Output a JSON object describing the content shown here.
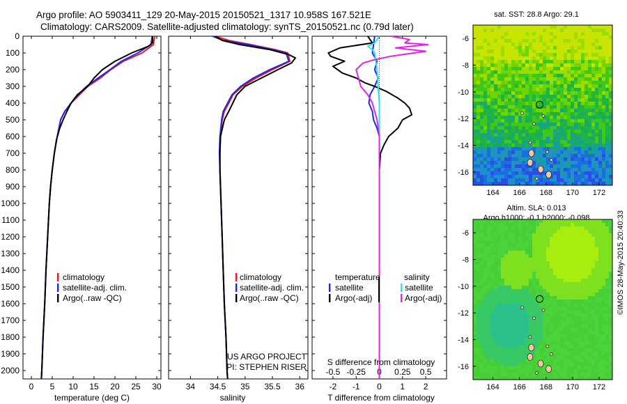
{
  "header": {
    "line1": "Argo profile: AO 5903411_129 20-May-2015 20150521_1317 10.958S 167.521E",
    "line2": "Climatology: CARS2009. Satellite-adjusted climatology: synTS_20150521.nc (0.79d later)"
  },
  "depth_ticks": [
    "0",
    "100",
    "200",
    "300",
    "400",
    "500",
    "600",
    "700",
    "800",
    "900",
    "1000",
    "1100",
    "1200",
    "1300",
    "1400",
    "1500",
    "1600",
    "1700",
    "1800",
    "1900",
    "2000"
  ],
  "colors": {
    "climatology": "#e8161b",
    "satellite": "#1d27e8",
    "argo": "#000000",
    "sal_satellite": "#20e6f0",
    "sal_argo": "#e81fe8"
  },
  "chart_data": [
    {
      "type": "line",
      "panel": "temperature",
      "xlabel": "temperature (deg C)",
      "ylabel": "",
      "xlim": [
        -2,
        31
      ],
      "ylim": [
        2050,
        0
      ],
      "xticks": [
        "0",
        "5",
        "10",
        "15",
        "20",
        "25",
        "30"
      ],
      "legend": [
        "climatology",
        "satellite-adj. clim.",
        "Argo(..raw -QC)"
      ],
      "series": [
        {
          "name": "climatology",
          "color": "#e8161b",
          "points": [
            [
              29.5,
              0
            ],
            [
              29.2,
              50
            ],
            [
              26.5,
              100
            ],
            [
              22,
              150
            ],
            [
              19,
              200
            ],
            [
              16.5,
              250
            ],
            [
              13.5,
              300
            ],
            [
              11.5,
              350
            ],
            [
              9.5,
              400
            ],
            [
              8,
              450
            ],
            [
              7,
              500
            ],
            [
              6.2,
              600
            ],
            [
              5.5,
              700
            ],
            [
              5,
              800
            ],
            [
              4.6,
              900
            ],
            [
              4.3,
              1000
            ],
            [
              3.9,
              1200
            ],
            [
              3.5,
              1400
            ],
            [
              3.2,
              1600
            ],
            [
              2.8,
              1800
            ],
            [
              2.5,
              2000
            ],
            [
              2.4,
              2050
            ]
          ]
        },
        {
          "name": "satellite-adj. clim.",
          "color": "#1d27e8",
          "points": [
            [
              28.9,
              0
            ],
            [
              28.6,
              50
            ],
            [
              25.5,
              100
            ],
            [
              21.5,
              150
            ],
            [
              18.8,
              200
            ],
            [
              16,
              250
            ],
            [
              13.2,
              300
            ],
            [
              11.2,
              350
            ],
            [
              9.5,
              400
            ],
            [
              8,
              450
            ],
            [
              7,
              500
            ],
            [
              6.2,
              600
            ],
            [
              5.5,
              700
            ],
            [
              5,
              800
            ],
            [
              4.6,
              900
            ],
            [
              4.3,
              1000
            ],
            [
              3.9,
              1200
            ],
            [
              3.5,
              1400
            ],
            [
              3.2,
              1600
            ],
            [
              2.8,
              1800
            ],
            [
              2.5,
              2000
            ],
            [
              2.4,
              2050
            ]
          ]
        },
        {
          "name": "Argo(..raw -QC)",
          "color": "#000000",
          "points": [
            [
              29,
              0
            ],
            [
              29,
              40
            ],
            [
              28,
              60
            ],
            [
              24,
              100
            ],
            [
              20,
              150
            ],
            [
              17,
              200
            ],
            [
              15,
              250
            ],
            [
              13.5,
              300
            ],
            [
              11,
              350
            ],
            [
              9.5,
              400
            ],
            [
              8.5,
              450
            ],
            [
              7.6,
              500
            ],
            [
              6.8,
              550
            ],
            [
              6,
              620
            ],
            [
              5.5,
              700
            ],
            [
              5,
              800
            ],
            [
              4.6,
              900
            ],
            [
              4.3,
              1000
            ],
            [
              3.9,
              1200
            ],
            [
              3.5,
              1400
            ],
            [
              3.2,
              1600
            ],
            [
              2.8,
              1800
            ],
            [
              2.5,
              2000
            ],
            [
              2.4,
              2050
            ]
          ]
        }
      ]
    },
    {
      "type": "line",
      "panel": "salinity",
      "xlabel": "salinity",
      "ylabel": "",
      "xlim": [
        33.6,
        36.15
      ],
      "ylim": [
        2050,
        0
      ],
      "xticks": [
        "34",
        "34.5",
        "35",
        "35.5",
        "36"
      ],
      "legend": [
        "climatology",
        "satellite-adj. clim.",
        "Argo(..raw -QC)"
      ],
      "footer": [
        "US ARGO PROJECT",
        "PI: STEPHEN RISER"
      ],
      "series": [
        {
          "name": "climatology",
          "color": "#e8161b",
          "points": [
            [
              34.45,
              0
            ],
            [
              34.7,
              25
            ],
            [
              35.1,
              50
            ],
            [
              35.55,
              80
            ],
            [
              35.78,
              100
            ],
            [
              35.82,
              150
            ],
            [
              35.5,
              200
            ],
            [
              35.2,
              250
            ],
            [
              34.95,
              300
            ],
            [
              34.78,
              350
            ],
            [
              34.7,
              400
            ],
            [
              34.62,
              450
            ],
            [
              34.58,
              500
            ],
            [
              34.55,
              600
            ],
            [
              34.54,
              700
            ],
            [
              34.54,
              800
            ],
            [
              34.56,
              1000
            ],
            [
              34.58,
              1200
            ],
            [
              34.6,
              1400
            ],
            [
              34.62,
              1600
            ],
            [
              34.65,
              1800
            ],
            [
              34.67,
              2000
            ],
            [
              34.68,
              2050
            ]
          ]
        },
        {
          "name": "satellite-adj. clim.",
          "color": "#1d27e8",
          "points": [
            [
              34.4,
              0
            ],
            [
              34.6,
              25
            ],
            [
              35.05,
              50
            ],
            [
              35.5,
              80
            ],
            [
              35.75,
              100
            ],
            [
              35.8,
              150
            ],
            [
              35.45,
              200
            ],
            [
              35.15,
              250
            ],
            [
              34.92,
              300
            ],
            [
              34.76,
              350
            ],
            [
              34.68,
              400
            ],
            [
              34.6,
              450
            ],
            [
              34.57,
              500
            ],
            [
              34.54,
              600
            ],
            [
              34.53,
              700
            ],
            [
              34.54,
              800
            ],
            [
              34.56,
              1000
            ],
            [
              34.58,
              1200
            ],
            [
              34.6,
              1400
            ],
            [
              34.62,
              1600
            ],
            [
              34.65,
              1800
            ],
            [
              34.67,
              2000
            ],
            [
              34.68,
              2050
            ]
          ]
        },
        {
          "name": "Argo(..raw -QC)",
          "color": "#000000",
          "points": [
            [
              34.45,
              0
            ],
            [
              34.58,
              25
            ],
            [
              34.9,
              50
            ],
            [
              35.45,
              80
            ],
            [
              35.8,
              110
            ],
            [
              35.92,
              130
            ],
            [
              35.85,
              160
            ],
            [
              35.6,
              200
            ],
            [
              35.3,
              250
            ],
            [
              35,
              300
            ],
            [
              34.85,
              350
            ],
            [
              34.7,
              450
            ],
            [
              34.62,
              500
            ],
            [
              34.55,
              600
            ],
            [
              34.54,
              700
            ],
            [
              34.54,
              800
            ],
            [
              34.56,
              1000
            ],
            [
              34.58,
              1200
            ],
            [
              34.6,
              1400
            ],
            [
              34.62,
              1600
            ],
            [
              34.65,
              1800
            ],
            [
              34.67,
              2000
            ],
            [
              34.68,
              2050
            ]
          ]
        }
      ]
    },
    {
      "type": "line",
      "panel": "difference",
      "xlabel": "T difference from climatology",
      "secondary_xlabel": "S difference from climatology",
      "xlim": [
        -2.9,
        2.9
      ],
      "ylim": [
        2050,
        0
      ],
      "xticks": [
        "-2",
        "-1",
        "0",
        "1",
        "2"
      ],
      "secondary_xticks": [
        {
          "label": "-0.5",
          "at": -2
        },
        {
          "label": "-0.25",
          "at": -1
        },
        {
          "label": "0",
          "at": 0
        },
        {
          "label": "0.25",
          "at": 1
        },
        {
          "label": "0.5",
          "at": 2
        }
      ],
      "legend": {
        "left_title": "temperature",
        "right_title": "salinity",
        "items": [
          "satellite",
          "Argo(-adj)",
          "satellite",
          "Argo(-adj)"
        ]
      },
      "series": [
        {
          "name": "temperature satellite",
          "color": "#1d27e8",
          "points": [
            [
              -0.2,
              0
            ],
            [
              -0.25,
              50
            ],
            [
              -0.3,
              100
            ],
            [
              -0.1,
              150
            ],
            [
              -0.2,
              200
            ],
            [
              -0.05,
              250
            ],
            [
              -0.2,
              300
            ],
            [
              -0.4,
              350
            ],
            [
              -0.45,
              400
            ],
            [
              -0.3,
              450
            ],
            [
              -0.25,
              500
            ],
            [
              -0.1,
              550
            ],
            [
              0,
              600
            ],
            [
              0,
              700
            ],
            [
              0,
              1000
            ],
            [
              0,
              2050
            ]
          ]
        },
        {
          "name": "temperature Argo(-adj)",
          "color": "#000000",
          "points": [
            [
              -0.5,
              0
            ],
            [
              -0.3,
              40
            ],
            [
              -1.7,
              70
            ],
            [
              -2.2,
              100
            ],
            [
              -2.1,
              120
            ],
            [
              -1.5,
              150
            ],
            [
              -2,
              180
            ],
            [
              -1.6,
              220
            ],
            [
              -1,
              250
            ],
            [
              -0.6,
              280
            ],
            [
              -0.2,
              300
            ],
            [
              0.3,
              330
            ],
            [
              0.8,
              370
            ],
            [
              1.1,
              400
            ],
            [
              1.3,
              430
            ],
            [
              1.4,
              470
            ],
            [
              1,
              500
            ],
            [
              0.8,
              550
            ],
            [
              0.4,
              600
            ],
            [
              0.2,
              650
            ],
            [
              0.05,
              700
            ],
            [
              0,
              800
            ],
            [
              0,
              2050
            ]
          ]
        },
        {
          "name": "salinity satellite",
          "color": "#20e6f0",
          "points": [
            [
              0,
              0
            ],
            [
              -0.1,
              20
            ],
            [
              -0.2,
              40
            ],
            [
              -0.5,
              60
            ],
            [
              -0.3,
              80
            ],
            [
              -0.2,
              100
            ],
            [
              -0.15,
              150
            ],
            [
              -0.1,
              200
            ],
            [
              -0.05,
              300
            ],
            [
              0,
              400
            ],
            [
              0,
              600
            ],
            [
              0,
              1000
            ],
            [
              0,
              2050
            ]
          ]
        },
        {
          "name": "salinity Argo(-adj)",
          "color": "#e81fe8",
          "points": [
            [
              0.5,
              0
            ],
            [
              1.3,
              20
            ],
            [
              1.1,
              40
            ],
            [
              2.1,
              50
            ],
            [
              0.7,
              70
            ],
            [
              2,
              90
            ],
            [
              1,
              110
            ],
            [
              0.5,
              120
            ],
            [
              -0.2,
              140
            ],
            [
              -0.7,
              160
            ],
            [
              -1,
              200
            ],
            [
              -0.9,
              250
            ],
            [
              -0.8,
              300
            ],
            [
              -0.5,
              350
            ],
            [
              -0.3,
              400
            ],
            [
              -0.2,
              450
            ],
            [
              -0.1,
              500
            ],
            [
              0,
              600
            ],
            [
              0,
              2050
            ]
          ]
        }
      ]
    },
    {
      "type": "heatmap",
      "panel": "sst-map",
      "title": "sat. SST: 28.8 Argo: 29.1",
      "xlim": [
        162.5,
        173
      ],
      "ylim": [
        -17,
        -5
      ],
      "xticks": [
        "164",
        "166",
        "168",
        "170",
        "172"
      ],
      "yticks": [
        "-6",
        "-8",
        "-10",
        "-12",
        "-14",
        "-16"
      ],
      "marker": {
        "lon": 167.52,
        "lat": -10.96
      }
    },
    {
      "type": "heatmap",
      "panel": "sla-map",
      "title": "Altim. SLA: 0.013",
      "subtitle": "Argo h1000: -0.1 h2000: -0.098",
      "xlim": [
        162.5,
        173
      ],
      "ylim": [
        -17,
        -5
      ],
      "xticks": [
        "164",
        "166",
        "168",
        "170",
        "172"
      ],
      "yticks": [
        "-6",
        "-8",
        "-10",
        "-12",
        "-14",
        "-16"
      ],
      "marker": {
        "lon": 167.52,
        "lat": -10.96
      }
    }
  ],
  "side_caption": "©IMOS 28-May-2015 20:40:33"
}
